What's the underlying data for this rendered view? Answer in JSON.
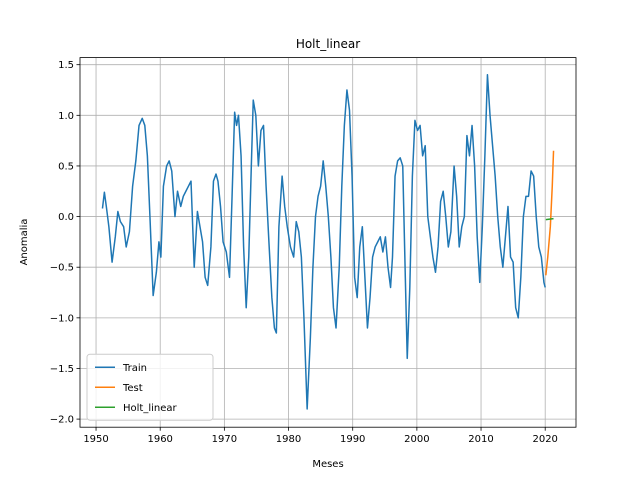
{
  "chart_data": {
    "type": "line",
    "title": "Holt_linear",
    "x_label": "Meses",
    "y_label": "Anomalia",
    "xlim": [
      1947.5,
      2024.8
    ],
    "ylim": [
      -2.08,
      1.57
    ],
    "xticks": [
      1950,
      1960,
      1970,
      1980,
      1990,
      2000,
      2010,
      2020
    ],
    "yticks": [
      {
        "value": -2.0,
        "label": "−2.0"
      },
      {
        "value": -1.5,
        "label": "−1.5"
      },
      {
        "value": -1.0,
        "label": "−1.0"
      },
      {
        "value": -0.5,
        "label": "−0.5"
      },
      {
        "value": 0.0,
        "label": "0.0"
      },
      0.5,
      {
        "value": 1.0,
        "label": "1.0"
      },
      1.5
    ],
    "grid": true,
    "legend": "lower left",
    "series": [
      {
        "name": "Train",
        "color": "#1f77b4",
        "x": [
          1951.0,
          1951.3,
          1951.6,
          1952.0,
          1952.5,
          1953.0,
          1953.4,
          1953.8,
          1954.3,
          1954.7,
          1955.2,
          1955.7,
          1956.2,
          1956.7,
          1957.2,
          1957.6,
          1958.0,
          1958.4,
          1958.9,
          1959.4,
          1959.8,
          1960.1,
          1960.5,
          1961.0,
          1961.4,
          1961.8,
          1962.3,
          1962.7,
          1963.2,
          1963.6,
          1964.0,
          1964.4,
          1964.8,
          1965.3,
          1965.8,
          1966.2,
          1966.6,
          1967.0,
          1967.4,
          1967.9,
          1968.3,
          1968.7,
          1969.0,
          1969.4,
          1969.8,
          1970.3,
          1970.8,
          1971.2,
          1971.6,
          1971.9,
          1972.2,
          1972.6,
          1973.0,
          1973.4,
          1973.8,
          1974.2,
          1974.5,
          1974.9,
          1975.3,
          1975.7,
          1976.1,
          1976.5,
          1976.9,
          1977.4,
          1977.8,
          1978.1,
          1978.5,
          1979.0,
          1979.4,
          1979.8,
          1980.3,
          1980.8,
          1981.2,
          1981.6,
          1982.0,
          1982.4,
          1982.9,
          1983.4,
          1983.8,
          1984.2,
          1984.6,
          1985.0,
          1985.4,
          1985.8,
          1986.2,
          1986.6,
          1987.0,
          1987.4,
          1987.9,
          1988.3,
          1988.7,
          1989.1,
          1989.5,
          1989.9,
          1990.3,
          1990.7,
          1991.1,
          1991.5,
          1991.9,
          1992.3,
          1992.7,
          1993.1,
          1993.5,
          1993.9,
          1994.3,
          1994.7,
          1995.1,
          1995.5,
          1995.9,
          1996.2,
          1996.6,
          1997.0,
          1997.4,
          1997.8,
          1998.2,
          1998.5,
          1998.9,
          1999.3,
          1999.7,
          2000.1,
          2000.5,
          2000.9,
          2001.3,
          2001.7,
          2002.1,
          2002.5,
          2002.9,
          2003.3,
          2003.7,
          2004.1,
          2004.5,
          2004.9,
          2005.3,
          2005.8,
          2006.2,
          2006.6,
          2007.0,
          2007.4,
          2007.8,
          2008.2,
          2008.6,
          2009.0,
          2009.4,
          2009.8,
          2010.2,
          2010.6,
          2011.0,
          2011.4,
          2011.8,
          2012.2,
          2012.6,
          2013.0,
          2013.4,
          2013.8,
          2014.2,
          2014.6,
          2015.0,
          2015.4,
          2015.8,
          2016.2,
          2016.6,
          2017.0,
          2017.4,
          2017.8,
          2018.2,
          2018.6,
          2019.0,
          2019.4,
          2019.8,
          2020.0
        ],
        "values": [
          0.08,
          0.24,
          0.1,
          -0.1,
          -0.45,
          -0.2,
          0.05,
          -0.05,
          -0.1,
          -0.3,
          -0.15,
          0.3,
          0.55,
          0.9,
          0.97,
          0.9,
          0.6,
          0.0,
          -0.78,
          -0.55,
          -0.25,
          -0.4,
          0.3,
          0.5,
          0.55,
          0.45,
          0.0,
          0.25,
          0.1,
          0.2,
          0.25,
          0.3,
          0.35,
          -0.5,
          0.05,
          -0.1,
          -0.25,
          -0.6,
          -0.68,
          -0.3,
          0.35,
          0.42,
          0.35,
          0.1,
          -0.25,
          -0.35,
          -0.6,
          0.2,
          1.03,
          0.9,
          1.0,
          0.6,
          -0.3,
          -0.9,
          -0.4,
          0.5,
          1.15,
          1.0,
          0.5,
          0.85,
          0.9,
          0.3,
          -0.2,
          -0.8,
          -1.1,
          -1.15,
          -0.1,
          0.4,
          0.1,
          -0.1,
          -0.3,
          -0.4,
          -0.05,
          -0.15,
          -0.4,
          -1.0,
          -1.9,
          -1.2,
          -0.5,
          0.0,
          0.2,
          0.3,
          0.55,
          0.3,
          0.0,
          -0.4,
          -0.9,
          -1.1,
          -0.5,
          0.3,
          0.9,
          1.25,
          1.05,
          0.4,
          -0.6,
          -0.8,
          -0.3,
          -0.1,
          -0.6,
          -1.1,
          -0.8,
          -0.4,
          -0.3,
          -0.25,
          -0.2,
          -0.35,
          -0.2,
          -0.5,
          -0.7,
          -0.4,
          0.4,
          0.55,
          0.58,
          0.5,
          -0.6,
          -1.4,
          -0.7,
          0.4,
          0.95,
          0.85,
          0.9,
          0.6,
          0.7,
          0.0,
          -0.2,
          -0.4,
          -0.55,
          -0.3,
          0.15,
          0.25,
          0.0,
          -0.3,
          -0.15,
          0.5,
          0.2,
          -0.3,
          -0.1,
          0.0,
          0.8,
          0.6,
          0.9,
          0.5,
          -0.2,
          -0.65,
          -0.1,
          0.6,
          1.4,
          1.0,
          0.7,
          0.4,
          0.0,
          -0.3,
          -0.5,
          -0.2,
          0.1,
          -0.4,
          -0.45,
          -0.9,
          -1.0,
          -0.6,
          0.0,
          0.2,
          0.2,
          0.45,
          0.4,
          0.0,
          -0.3,
          -0.4,
          -0.65,
          -0.7
        ]
      },
      {
        "name": "Test",
        "color": "#ff7f0e",
        "x": [
          2020.1,
          2020.4,
          2020.8,
          2021.1,
          2021.3
        ],
        "values": [
          -0.58,
          -0.4,
          -0.1,
          0.3,
          0.65
        ]
      },
      {
        "name": "Holt_linear",
        "color": "#2ca02c",
        "x": [
          2020.1,
          2021.3
        ],
        "values": [
          -0.03,
          -0.02
        ]
      }
    ]
  }
}
